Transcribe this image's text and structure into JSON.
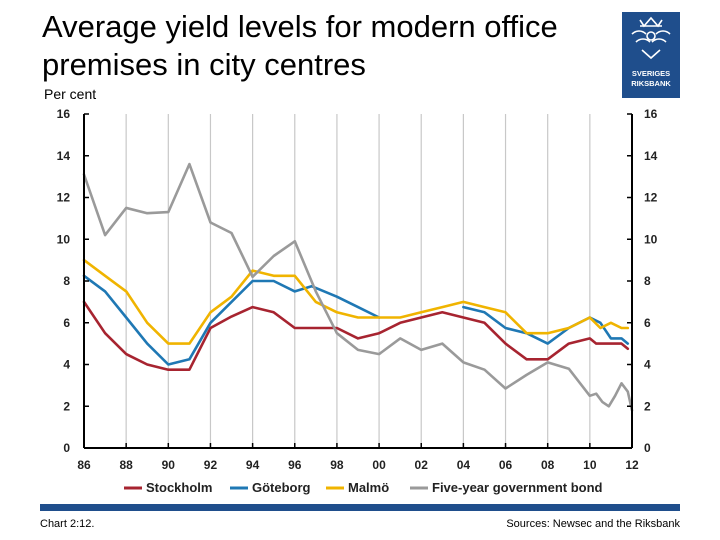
{
  "header": {
    "title": "Average yield levels for modern office premises in city centres",
    "unit": "Per cent"
  },
  "logo": {
    "line1": "SVERIGES",
    "line2": "RIKSBANK",
    "color": "#1f4e8c"
  },
  "footer": {
    "chart_number": "Chart 2:12.",
    "source": "Sources: Newsec and the Riksbank",
    "bar_color": "#1f4e8c"
  },
  "chart_data": {
    "type": "line",
    "xlim": [
      1986,
      2012
    ],
    "ylim": [
      0,
      16
    ],
    "x_ticks": [
      1986,
      1988,
      1990,
      1992,
      1994,
      1996,
      1998,
      2000,
      2002,
      2004,
      2006,
      2008,
      2010,
      2012
    ],
    "x_tick_labels": [
      "86",
      "88",
      "90",
      "92",
      "94",
      "96",
      "98",
      "00",
      "02",
      "04",
      "06",
      "08",
      "10",
      "12"
    ],
    "y_ticks": [
      0,
      2,
      4,
      6,
      8,
      10,
      12,
      14,
      16
    ],
    "y_tick_labels": [
      "0",
      "2",
      "4",
      "6",
      "8",
      "10",
      "12",
      "14",
      "16"
    ],
    "grid": "vertical",
    "legend_position": "bottom",
    "series": [
      {
        "name": "Stockholm",
        "color": "#a72430",
        "points": [
          [
            1986,
            7.0
          ],
          [
            1987,
            5.5
          ],
          [
            1988,
            4.5
          ],
          [
            1989,
            4.0
          ],
          [
            1990,
            3.75
          ],
          [
            1991,
            3.75
          ],
          [
            1992,
            5.75
          ],
          [
            1993,
            6.3
          ],
          [
            1994,
            6.75
          ],
          [
            1995,
            6.5
          ],
          [
            1996,
            5.75
          ],
          [
            1997,
            5.75
          ],
          [
            1998,
            5.75
          ],
          [
            1999,
            5.25
          ],
          [
            2000,
            5.5
          ],
          [
            2001,
            6.0
          ],
          [
            2002,
            6.25
          ],
          [
            2003,
            6.5
          ],
          [
            2004,
            6.25
          ],
          [
            2005,
            6.0
          ],
          [
            2006,
            5.0
          ],
          [
            2007,
            4.25
          ],
          [
            2008,
            4.25
          ],
          [
            2009,
            5.0
          ],
          [
            2010,
            5.25
          ],
          [
            2010.3,
            5.0
          ],
          [
            2011.5,
            5.0
          ],
          [
            2011.8,
            4.75
          ]
        ]
      },
      {
        "name": "Göteborg",
        "color": "#1f78b4",
        "points": [
          [
            1986,
            8.25
          ],
          [
            1987,
            7.5
          ],
          [
            1988,
            6.25
          ],
          [
            1989,
            5.0
          ],
          [
            1990,
            4.0
          ],
          [
            1991,
            4.25
          ],
          [
            1992,
            6.0
          ],
          [
            1993,
            7.0
          ],
          [
            1994,
            8.0
          ],
          [
            1995,
            8.0
          ],
          [
            1996,
            7.5
          ],
          [
            1996.8,
            7.75
          ],
          [
            1998,
            7.25
          ],
          [
            1999,
            6.75
          ],
          [
            2000,
            6.25
          ]
        ]
      },
      {
        "name": "Göteborg",
        "color": "#1f78b4",
        "points": [
          [
            2004,
            6.75
          ],
          [
            2005,
            6.5
          ],
          [
            2006,
            5.75
          ],
          [
            2007,
            5.5
          ],
          [
            2008,
            5.0
          ],
          [
            2009,
            5.75
          ],
          [
            2010,
            6.25
          ],
          [
            2010.5,
            6.0
          ],
          [
            2011,
            5.25
          ],
          [
            2011.5,
            5.25
          ],
          [
            2011.8,
            5.0
          ]
        ]
      },
      {
        "name": "Malmö",
        "color": "#f0b400",
        "points": [
          [
            1986,
            9.0
          ],
          [
            1987,
            8.25
          ],
          [
            1988,
            7.5
          ],
          [
            1989,
            6.0
          ],
          [
            1990,
            5.0
          ],
          [
            1991,
            5.0
          ],
          [
            1992,
            6.5
          ],
          [
            1993,
            7.25
          ],
          [
            1994,
            8.5
          ],
          [
            1995,
            8.25
          ],
          [
            1996,
            8.25
          ],
          [
            1997,
            7.0
          ],
          [
            1998,
            6.5
          ],
          [
            1999,
            6.25
          ],
          [
            2000,
            6.25
          ],
          [
            2001,
            6.25
          ],
          [
            2002,
            6.5
          ],
          [
            2003,
            6.75
          ],
          [
            2004,
            7.0
          ],
          [
            2005,
            6.75
          ],
          [
            2006,
            6.5
          ],
          [
            2007,
            5.5
          ],
          [
            2008,
            5.5
          ],
          [
            2009,
            5.75
          ],
          [
            2010,
            6.25
          ],
          [
            2010.5,
            5.75
          ],
          [
            2011,
            6.0
          ],
          [
            2011.5,
            5.75
          ],
          [
            2011.8,
            5.75
          ]
        ]
      },
      {
        "name": "Five-year government bond",
        "color": "#9a9a9a",
        "points": [
          [
            1986,
            13.1
          ],
          [
            1987,
            10.2
          ],
          [
            1988,
            11.5
          ],
          [
            1989,
            11.25
          ],
          [
            1990,
            11.3
          ],
          [
            1991,
            13.6
          ],
          [
            1992,
            10.8
          ],
          [
            1993,
            10.3
          ],
          [
            1994,
            8.2
          ],
          [
            1995,
            9.2
          ],
          [
            1996,
            9.9
          ],
          [
            1997,
            7.5
          ],
          [
            1998,
            5.5
          ],
          [
            1999,
            4.7
          ],
          [
            2000,
            4.5
          ],
          [
            2001,
            5.25
          ],
          [
            2002,
            4.7
          ],
          [
            2003,
            5.0
          ],
          [
            2004,
            4.1
          ],
          [
            2005,
            3.75
          ],
          [
            2006,
            2.85
          ],
          [
            2007,
            3.5
          ],
          [
            2008,
            4.1
          ],
          [
            2009,
            3.8
          ],
          [
            2010,
            2.5
          ],
          [
            2010.3,
            2.6
          ],
          [
            2010.6,
            2.2
          ],
          [
            2010.9,
            2.0
          ],
          [
            2011.2,
            2.5
          ],
          [
            2011.5,
            3.1
          ],
          [
            2011.8,
            2.7
          ],
          [
            2012,
            1.8
          ]
        ]
      }
    ],
    "legend": [
      {
        "name": "Stockholm",
        "color": "#a72430"
      },
      {
        "name": "Göteborg",
        "color": "#1f78b4"
      },
      {
        "name": "Malmö",
        "color": "#f0b400"
      },
      {
        "name": "Five-year government bond",
        "color": "#9a9a9a"
      }
    ]
  }
}
